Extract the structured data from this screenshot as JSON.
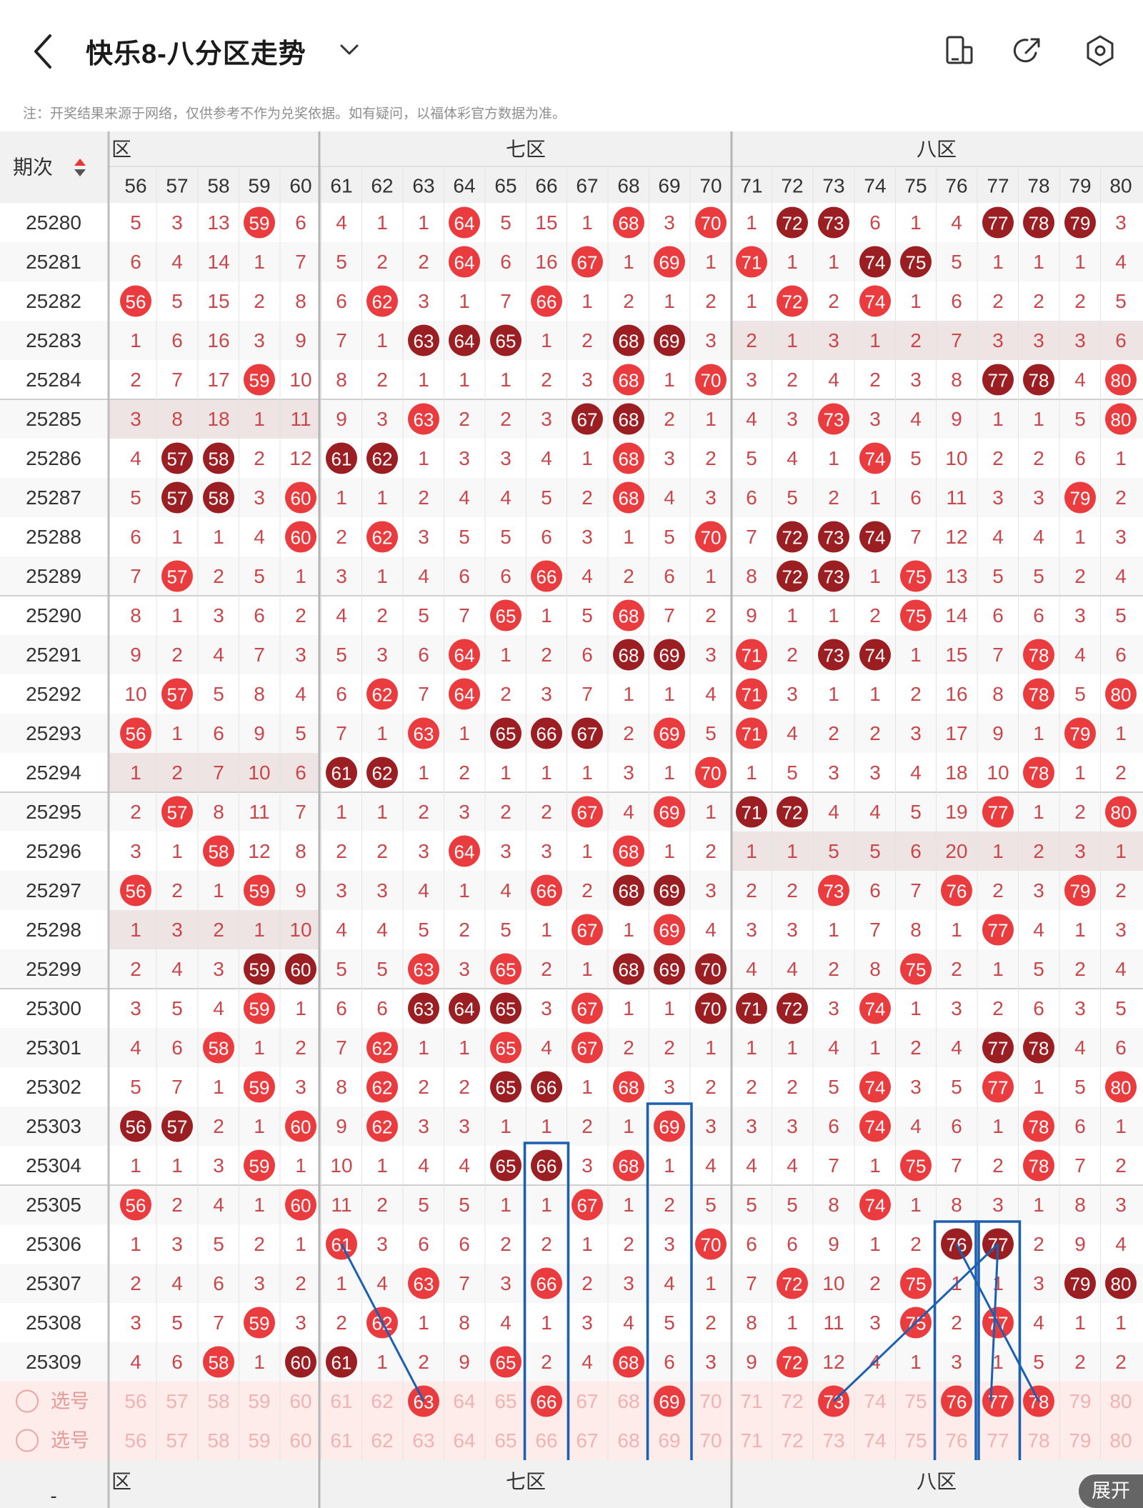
{
  "header": {
    "title": "快乐8-八分区走势",
    "back_icon": "chevron-left-icon",
    "dropdown_icon": "chevron-down-icon",
    "actions": [
      {
        "name": "layout-toggle-icon"
      },
      {
        "name": "share-icon"
      },
      {
        "name": "settings-icon"
      }
    ]
  },
  "notice": "注：开奖结果来源于网络，仅供参考不作为兑奖依据。如有疑问，以福体彩官方数据为准。",
  "table": {
    "period_header": "期次",
    "zones": [
      {
        "label": "六区",
        "shown": "区"
      },
      {
        "label": "七区",
        "shown": "七区"
      },
      {
        "label": "八区",
        "shown": "八区"
      }
    ],
    "columns": [
      56,
      57,
      58,
      59,
      60,
      61,
      62,
      63,
      64,
      65,
      66,
      67,
      68,
      69,
      70,
      71,
      72,
      73,
      74,
      75,
      76,
      77,
      78,
      79,
      80
    ],
    "rows": [
      {
        "period": "25280",
        "cells": [
          "5",
          "3",
          "13",
          "59",
          "6",
          "4",
          "1",
          "1",
          "64",
          "5",
          "15",
          "1",
          "68",
          "3",
          "70",
          "1",
          "72",
          "73",
          "6",
          "1",
          "4",
          "77",
          "78",
          "79",
          "3"
        ]
      },
      {
        "period": "25281",
        "cells": [
          "6",
          "4",
          "14",
          "1",
          "7",
          "5",
          "2",
          "2",
          "64",
          "6",
          "16",
          "67",
          "1",
          "69",
          "1",
          "71",
          "1",
          "1",
          "74",
          "75",
          "5",
          "1",
          "1",
          "1",
          "4"
        ]
      },
      {
        "period": "25282",
        "cells": [
          "56",
          "5",
          "15",
          "2",
          "8",
          "6",
          "62",
          "3",
          "1",
          "7",
          "66",
          "1",
          "2",
          "1",
          "2",
          "1",
          "72",
          "2",
          "74",
          "1",
          "6",
          "2",
          "2",
          "2",
          "5"
        ]
      },
      {
        "period": "25283",
        "cells": [
          "1",
          "6",
          "16",
          "3",
          "9",
          "7",
          "1",
          "63",
          "64",
          "65",
          "1",
          "2",
          "68",
          "69",
          "3",
          "2",
          "1",
          "3",
          "1",
          "2",
          "7",
          "3",
          "3",
          "3",
          "6"
        ]
      },
      {
        "period": "25284",
        "cells": [
          "2",
          "7",
          "17",
          "59",
          "10",
          "8",
          "2",
          "1",
          "1",
          "1",
          "2",
          "3",
          "68",
          "1",
          "70",
          "3",
          "2",
          "4",
          "2",
          "3",
          "8",
          "77",
          "78",
          "4",
          "80"
        ]
      },
      {
        "period": "25285",
        "cells": [
          "3",
          "8",
          "18",
          "1",
          "11",
          "9",
          "3",
          "63",
          "2",
          "2",
          "3",
          "67",
          "68",
          "2",
          "1",
          "4",
          "3",
          "73",
          "3",
          "4",
          "9",
          "1",
          "1",
          "5",
          "80"
        ]
      },
      {
        "period": "25286",
        "cells": [
          "4",
          "57",
          "58",
          "2",
          "12",
          "61",
          "62",
          "1",
          "3",
          "3",
          "4",
          "1",
          "68",
          "3",
          "2",
          "5",
          "4",
          "1",
          "74",
          "5",
          "10",
          "2",
          "2",
          "6",
          "1"
        ]
      },
      {
        "period": "25287",
        "cells": [
          "5",
          "57",
          "58",
          "3",
          "60",
          "1",
          "1",
          "2",
          "4",
          "4",
          "5",
          "2",
          "68",
          "4",
          "3",
          "6",
          "5",
          "2",
          "1",
          "6",
          "11",
          "3",
          "3",
          "79",
          "2"
        ]
      },
      {
        "period": "25288",
        "cells": [
          "6",
          "1",
          "1",
          "4",
          "60",
          "2",
          "62",
          "3",
          "5",
          "5",
          "6",
          "3",
          "1",
          "5",
          "70",
          "7",
          "72",
          "73",
          "74",
          "7",
          "12",
          "4",
          "4",
          "1",
          "3"
        ]
      },
      {
        "period": "25289",
        "cells": [
          "7",
          "57",
          "2",
          "5",
          "1",
          "3",
          "1",
          "4",
          "6",
          "6",
          "66",
          "4",
          "2",
          "6",
          "1",
          "8",
          "72",
          "73",
          "1",
          "75",
          "13",
          "5",
          "5",
          "2",
          "4"
        ]
      },
      {
        "period": "25290",
        "cells": [
          "8",
          "1",
          "3",
          "6",
          "2",
          "4",
          "2",
          "5",
          "7",
          "65",
          "1",
          "5",
          "68",
          "7",
          "2",
          "9",
          "1",
          "1",
          "2",
          "75",
          "14",
          "6",
          "6",
          "3",
          "5"
        ]
      },
      {
        "period": "25291",
        "cells": [
          "9",
          "2",
          "4",
          "7",
          "3",
          "5",
          "3",
          "6",
          "64",
          "1",
          "2",
          "6",
          "68",
          "69",
          "3",
          "71",
          "2",
          "73",
          "74",
          "1",
          "15",
          "7",
          "78",
          "4",
          "6"
        ]
      },
      {
        "period": "25292",
        "cells": [
          "10",
          "57",
          "5",
          "8",
          "4",
          "6",
          "62",
          "7",
          "64",
          "2",
          "3",
          "7",
          "1",
          "1",
          "4",
          "71",
          "3",
          "1",
          "1",
          "2",
          "16",
          "8",
          "78",
          "5",
          "80"
        ]
      },
      {
        "period": "25293",
        "cells": [
          "56",
          "1",
          "6",
          "9",
          "5",
          "7",
          "1",
          "63",
          "1",
          "65",
          "66",
          "67",
          "2",
          "69",
          "5",
          "71",
          "4",
          "2",
          "2",
          "3",
          "17",
          "9",
          "1",
          "79",
          "1"
        ]
      },
      {
        "period": "25294",
        "cells": [
          "1",
          "2",
          "7",
          "10",
          "6",
          "61",
          "62",
          "1",
          "2",
          "1",
          "1",
          "1",
          "3",
          "1",
          "70",
          "1",
          "5",
          "3",
          "3",
          "4",
          "18",
          "10",
          "78",
          "1",
          "2"
        ]
      },
      {
        "period": "25295",
        "cells": [
          "2",
          "57",
          "8",
          "11",
          "7",
          "1",
          "1",
          "2",
          "3",
          "2",
          "2",
          "67",
          "4",
          "69",
          "1",
          "71",
          "72",
          "4",
          "4",
          "5",
          "19",
          "77",
          "1",
          "2",
          "80"
        ]
      },
      {
        "period": "25296",
        "cells": [
          "3",
          "1",
          "58",
          "12",
          "8",
          "2",
          "2",
          "3",
          "64",
          "3",
          "3",
          "1",
          "68",
          "1",
          "2",
          "1",
          "1",
          "5",
          "5",
          "6",
          "20",
          "1",
          "2",
          "3",
          "1"
        ]
      },
      {
        "period": "25297",
        "cells": [
          "56",
          "2",
          "1",
          "59",
          "9",
          "3",
          "3",
          "4",
          "1",
          "4",
          "66",
          "2",
          "68",
          "69",
          "3",
          "2",
          "2",
          "73",
          "6",
          "7",
          "76",
          "2",
          "3",
          "79",
          "2"
        ]
      },
      {
        "period": "25298",
        "cells": [
          "1",
          "3",
          "2",
          "1",
          "10",
          "4",
          "4",
          "5",
          "2",
          "5",
          "1",
          "67",
          "1",
          "69",
          "4",
          "3",
          "3",
          "1",
          "7",
          "8",
          "1",
          "77",
          "4",
          "1",
          "3"
        ]
      },
      {
        "period": "25299",
        "cells": [
          "2",
          "4",
          "3",
          "59",
          "60",
          "5",
          "5",
          "63",
          "3",
          "65",
          "2",
          "1",
          "68",
          "69",
          "70",
          "4",
          "4",
          "2",
          "8",
          "75",
          "2",
          "1",
          "5",
          "2",
          "4"
        ]
      },
      {
        "period": "25300",
        "cells": [
          "3",
          "5",
          "4",
          "59",
          "1",
          "6",
          "6",
          "63",
          "64",
          "65",
          "3",
          "67",
          "1",
          "1",
          "70",
          "71",
          "72",
          "3",
          "74",
          "1",
          "3",
          "2",
          "6",
          "3",
          "5"
        ]
      },
      {
        "period": "25301",
        "cells": [
          "4",
          "6",
          "58",
          "1",
          "2",
          "7",
          "62",
          "1",
          "1",
          "65",
          "4",
          "67",
          "2",
          "2",
          "1",
          "1",
          "1",
          "4",
          "1",
          "2",
          "4",
          "77",
          "78",
          "4",
          "6"
        ]
      },
      {
        "period": "25302",
        "cells": [
          "5",
          "7",
          "1",
          "59",
          "3",
          "8",
          "62",
          "2",
          "2",
          "65",
          "66",
          "1",
          "68",
          "3",
          "2",
          "2",
          "2",
          "5",
          "74",
          "3",
          "5",
          "77",
          "1",
          "5",
          "80"
        ]
      },
      {
        "period": "25303",
        "cells": [
          "56",
          "57",
          "2",
          "1",
          "60",
          "9",
          "62",
          "3",
          "3",
          "1",
          "1",
          "2",
          "1",
          "69",
          "3",
          "3",
          "3",
          "6",
          "74",
          "4",
          "6",
          "1",
          "78",
          "6",
          "1"
        ]
      },
      {
        "period": "25304",
        "cells": [
          "1",
          "1",
          "3",
          "59",
          "1",
          "10",
          "1",
          "4",
          "4",
          "65",
          "66",
          "3",
          "68",
          "1",
          "4",
          "4",
          "4",
          "7",
          "1",
          "75",
          "7",
          "2",
          "78",
          "7",
          "2"
        ]
      },
      {
        "period": "25305",
        "cells": [
          "56",
          "2",
          "4",
          "1",
          "60",
          "11",
          "2",
          "5",
          "5",
          "1",
          "1",
          "67",
          "1",
          "2",
          "5",
          "5",
          "5",
          "8",
          "74",
          "1",
          "8",
          "3",
          "1",
          "8",
          "3"
        ]
      },
      {
        "period": "25306",
        "cells": [
          "1",
          "3",
          "5",
          "2",
          "1",
          "61",
          "3",
          "6",
          "6",
          "2",
          "2",
          "1",
          "2",
          "3",
          "70",
          "6",
          "6",
          "9",
          "1",
          "2",
          "76",
          "77",
          "2",
          "9",
          "4"
        ]
      },
      {
        "period": "25307",
        "cells": [
          "2",
          "4",
          "6",
          "3",
          "2",
          "1",
          "4",
          "63",
          "7",
          "3",
          "66",
          "2",
          "3",
          "4",
          "1",
          "7",
          "72",
          "10",
          "2",
          "75",
          "1",
          "1",
          "3",
          "79",
          "80"
        ]
      },
      {
        "period": "25308",
        "cells": [
          "3",
          "5",
          "7",
          "59",
          "3",
          "2",
          "62",
          "1",
          "8",
          "4",
          "1",
          "3",
          "4",
          "5",
          "2",
          "8",
          "1",
          "11",
          "3",
          "75",
          "2",
          "77",
          "4",
          "1",
          "1"
        ]
      },
      {
        "period": "25309",
        "cells": [
          "4",
          "6",
          "58",
          "1",
          "60",
          "61",
          "1",
          "2",
          "9",
          "65",
          "2",
          "4",
          "68",
          "6",
          "3",
          "9",
          "72",
          "12",
          "4",
          "1",
          "3",
          "1",
          "5",
          "2",
          "2"
        ]
      }
    ],
    "select_rows": [
      {
        "label": "选号",
        "selected": [
          63,
          66,
          69,
          73,
          76,
          77,
          78
        ]
      },
      {
        "label": "选号",
        "selected": []
      }
    ],
    "footer_zones": [
      "区",
      "七区",
      "八区"
    ],
    "footer_dash": "-"
  },
  "expand_button": "展开",
  "colors": {
    "red": "#ea3b3f",
    "dark_red": "#9a1e22",
    "miss_text": "#c9474b",
    "stripe": "#efe4e4",
    "header_bg": "#f1f1f1",
    "select_bg": "#fdecea",
    "annot_blue": "#1d5fb0"
  }
}
